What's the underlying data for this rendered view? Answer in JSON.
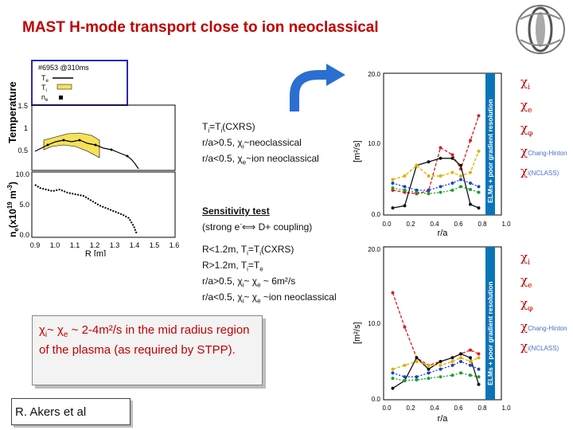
{
  "title": "MAST H-mode transport close to ion neoclassical",
  "left_plot": {
    "legend_shot": "#6953 @310ms",
    "legend_te": "T",
    "legend_te_sub": "e",
    "legend_ti": "T",
    "legend_ti_sub": "i",
    "legend_ne": "n",
    "legend_ne_sub": "e",
    "top_ylabel": "Temperature",
    "top_yticks": [
      "1.5",
      "1",
      "0.5"
    ],
    "bottom_ylabel": "n",
    "bottom_ylabel_sub": "e",
    "bottom_ylabel_rest": "(x10",
    "bottom_ylabel_exp": "19",
    "bottom_ylabel_units": "m",
    "bottom_ylabel_units_exp": "-3",
    "bottom_ylabel_close": ")",
    "bottom_yticks": [
      "10.0",
      "5.0",
      "0.0"
    ],
    "xticks": [
      "0.9",
      "1.0",
      "1.1",
      "1.2",
      "1.3",
      "1.4",
      "1.5",
      "1.6"
    ],
    "xlabel": "R [m]"
  },
  "notes_top": {
    "line1": "T",
    "line1_sub": "i",
    "line1_rest": "=T",
    "line1_sub2": "i",
    "line1_end": "(CXRS)",
    "line2": "r/a>0.5, χ",
    "line2_sub": "i",
    "line2_end": "~neoclassical",
    "line3": "r/a<0.5, χ",
    "line3_sub": "e",
    "line3_end": "~ion neoclassical"
  },
  "sensitivity": {
    "heading": "Sensitivity test",
    "line2": "(strong e",
    "line2_sup": "-",
    "line2_symbol": "⟺",
    "line2_end": " D+ coupling)"
  },
  "notes_bottom": {
    "line1": "R<1.2m, T",
    "line1_sub": "i",
    "line1_mid": "=T",
    "line1_sub2": "i",
    "line1_end": "(CXRS)",
    "line2": "R>1.2m, T",
    "line2_sub": "i",
    "line2_end": "=T",
    "line2_sub2": "e",
    "line3": "r/a>0.5, χ",
    "line3_sub": "i",
    "line3_mid": "~ χ",
    "line3_sub2": "e",
    "line3_end": " ~ 6m²/s",
    "line4": "r/a<0.5, χ",
    "line4_sub": "i",
    "line4_mid": "~ χ",
    "line4_sub2": "e",
    "line4_end": " ~ion neoclassical"
  },
  "callout": {
    "chi_i": "χ",
    "sub_i": "i",
    "chi_e": "~ χ",
    "sub_e": "e",
    "rest": " ~ 2-4m²/s in the mid radius region of the plasma (as required by STPP)."
  },
  "author": "R. Akers et al",
  "right_plots": {
    "ylabel": "[m²/s]",
    "yticks": [
      "20.0",
      "10.0",
      "0.0"
    ],
    "xticks": [
      "0.0",
      "0.2",
      "0.4",
      "0.6",
      "0.8",
      "1.0"
    ],
    "xlabel": "r/a",
    "band_label": "ELMs + poor gradient resolution"
  },
  "legend": {
    "chi": "χ",
    "i": "i",
    "e": "e",
    "phi": "φ",
    "chang": "Chang-Hinton",
    "nclass": "i(NCLASS)"
  },
  "colors": {
    "title": "#c00000",
    "ion": "#d42020",
    "electron": "#111111",
    "phi": "#e0b000",
    "chang_hinton": "#1a3fd0",
    "nclass": "#1aa02a",
    "band": "#0a74b8",
    "arrow": "#2a6fd1"
  },
  "chart_data": [
    {
      "type": "line",
      "title": "",
      "xlabel": "r/a",
      "ylabel": "[m²/s]",
      "xlim": [
        0.0,
        1.0
      ],
      "ylim": [
        0.0,
        20.0
      ],
      "series": [
        {
          "name": "χi",
          "x": [
            0.05,
            0.15,
            0.25,
            0.35,
            0.45,
            0.55,
            0.62,
            0.7,
            0.77
          ],
          "values": [
            3.5,
            3.2,
            3.0,
            3.4,
            9.5,
            8.5,
            6.5,
            10.5,
            14.0
          ]
        },
        {
          "name": "χe",
          "x": [
            0.05,
            0.15,
            0.25,
            0.35,
            0.45,
            0.55,
            0.62,
            0.7,
            0.77
          ],
          "values": [
            1.0,
            1.3,
            7.0,
            7.5,
            8.0,
            8.0,
            7.0,
            1.5,
            1.0
          ]
        },
        {
          "name": "χφ",
          "x": [
            0.05,
            0.15,
            0.25,
            0.35,
            0.45,
            0.55,
            0.62,
            0.7,
            0.77
          ],
          "values": [
            5.0,
            5.5,
            7.0,
            5.5,
            5.5,
            6.0,
            5.5,
            6.0,
            9.0
          ]
        },
        {
          "name": "χ Chang-Hinton",
          "x": [
            0.05,
            0.15,
            0.25,
            0.35,
            0.45,
            0.55,
            0.62,
            0.7,
            0.77
          ],
          "values": [
            4.5,
            4.0,
            3.5,
            3.5,
            4.0,
            4.5,
            5.0,
            4.5,
            4.0
          ]
        },
        {
          "name": "χi(NCLASS)",
          "x": [
            0.05,
            0.15,
            0.25,
            0.35,
            0.45,
            0.55,
            0.62,
            0.7,
            0.77
          ],
          "values": [
            3.8,
            3.5,
            3.2,
            3.0,
            3.2,
            3.5,
            4.0,
            3.6,
            3.2
          ]
        }
      ]
    },
    {
      "type": "line",
      "title": "",
      "xlabel": "r/a",
      "ylabel": "[m²/s]",
      "xlim": [
        0.0,
        1.0
      ],
      "ylim": [
        0.0,
        20.0
      ],
      "series": [
        {
          "name": "χi",
          "x": [
            0.05,
            0.15,
            0.25,
            0.35,
            0.45,
            0.55,
            0.62,
            0.7,
            0.77
          ],
          "values": [
            14.0,
            9.5,
            5.5,
            4.5,
            5.0,
            5.5,
            6.0,
            6.5,
            6.0
          ]
        },
        {
          "name": "χe",
          "x": [
            0.05,
            0.15,
            0.25,
            0.35,
            0.45,
            0.55,
            0.62,
            0.7,
            0.77
          ],
          "values": [
            1.5,
            2.5,
            5.5,
            4.0,
            5.0,
            5.5,
            6.0,
            5.5,
            2.0
          ]
        },
        {
          "name": "χφ",
          "x": [
            0.05,
            0.15,
            0.25,
            0.35,
            0.45,
            0.55,
            0.62,
            0.7,
            0.77
          ],
          "values": [
            4.0,
            4.5,
            5.0,
            4.5,
            4.5,
            5.0,
            5.5,
            5.0,
            5.5
          ]
        },
        {
          "name": "χ Chang-Hinton",
          "x": [
            0.05,
            0.15,
            0.25,
            0.35,
            0.45,
            0.55,
            0.62,
            0.7,
            0.77
          ],
          "values": [
            3.5,
            3.0,
            3.0,
            3.5,
            4.0,
            4.5,
            5.0,
            4.5,
            4.0
          ]
        },
        {
          "name": "χi(NCLASS)",
          "x": [
            0.05,
            0.15,
            0.25,
            0.35,
            0.45,
            0.55,
            0.62,
            0.7,
            0.77
          ],
          "values": [
            2.8,
            2.5,
            2.6,
            2.8,
            3.0,
            3.2,
            3.5,
            3.2,
            3.0
          ]
        }
      ]
    }
  ]
}
